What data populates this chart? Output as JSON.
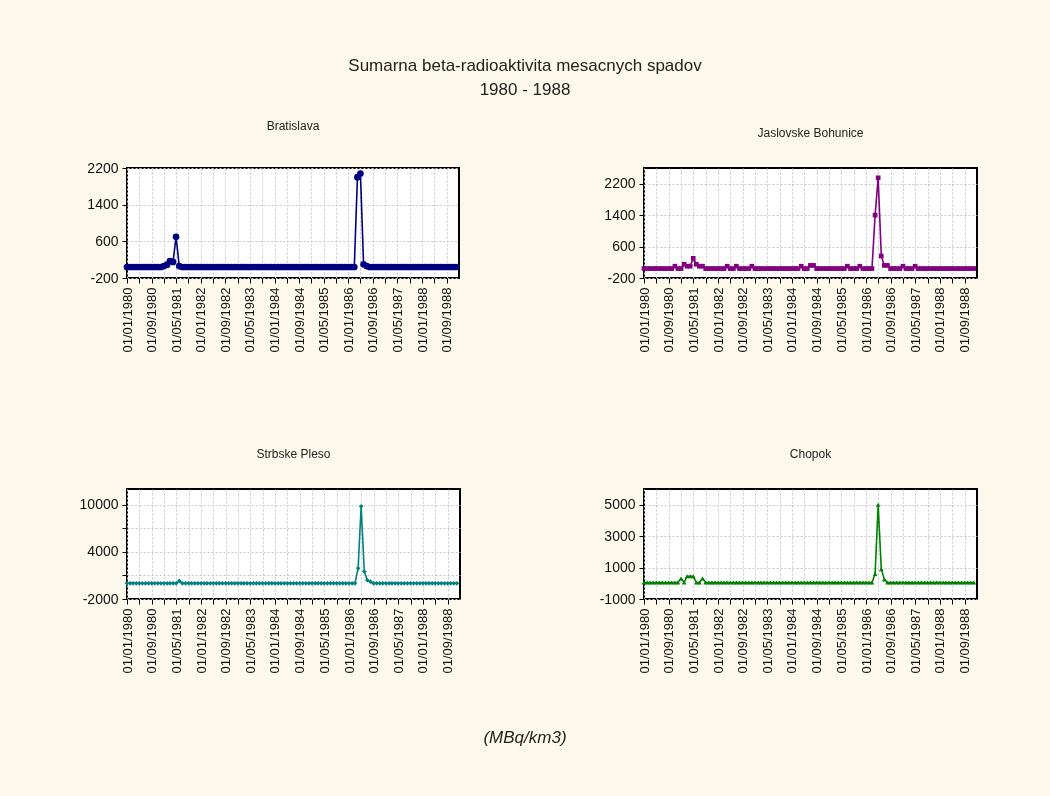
{
  "chart_data": [
    {
      "type": "other",
      "title": "Sumarna beta-radioaktivita mesacnych spadov",
      "subtitle": "1980 - 1988",
      "annotations": [
        "(MBq/km3)"
      ]
    },
    {
      "type": "line",
      "title": "Bratislava",
      "color": "#000080",
      "marker": "circle",
      "grid": true,
      "x": [
        "1980-01",
        "1980-02",
        "1980-03",
        "1980-04",
        "1980-05",
        "1980-06",
        "1980-07",
        "1980-08",
        "1980-09",
        "1980-10",
        "1980-11",
        "1980-12",
        "1981-01",
        "1981-02",
        "1981-03",
        "1981-04",
        "1981-05",
        "1981-06",
        "1981-07",
        "1981-08",
        "1981-09",
        "1981-10",
        "1981-11",
        "1981-12",
        "1982-01",
        "1982-02",
        "1982-03",
        "1982-04",
        "1982-05",
        "1982-06",
        "1982-07",
        "1982-08",
        "1982-09",
        "1982-10",
        "1982-11",
        "1982-12",
        "1983-01",
        "1983-02",
        "1983-03",
        "1983-04",
        "1983-05",
        "1983-06",
        "1983-07",
        "1983-08",
        "1983-09",
        "1983-10",
        "1983-11",
        "1983-12",
        "1984-01",
        "1984-02",
        "1984-03",
        "1984-04",
        "1984-05",
        "1984-06",
        "1984-07",
        "1984-08",
        "1984-09",
        "1984-10",
        "1984-11",
        "1984-12",
        "1985-01",
        "1985-02",
        "1985-03",
        "1985-04",
        "1985-05",
        "1985-06",
        "1985-07",
        "1985-08",
        "1985-09",
        "1985-10",
        "1985-11",
        "1985-12",
        "1986-01",
        "1986-02",
        "1986-03",
        "1986-04",
        "1986-05",
        "1986-06",
        "1986-07",
        "1986-08",
        "1986-09",
        "1986-10",
        "1986-11",
        "1986-12",
        "1987-01",
        "1987-02",
        "1987-03",
        "1987-04",
        "1987-05",
        "1987-06",
        "1987-07",
        "1987-08",
        "1987-09",
        "1987-10",
        "1987-11",
        "1987-12",
        "1988-01",
        "1988-02",
        "1988-03",
        "1988-04",
        "1988-05",
        "1988-06",
        "1988-07",
        "1988-08",
        "1988-09",
        "1988-10",
        "1988-11",
        "1988-12"
      ],
      "values": [
        40,
        40,
        40,
        40,
        40,
        40,
        40,
        40,
        40,
        40,
        40,
        40,
        60,
        90,
        170,
        150,
        700,
        60,
        40,
        40,
        40,
        40,
        40,
        40,
        40,
        40,
        40,
        40,
        40,
        40,
        40,
        40,
        40,
        40,
        40,
        40,
        40,
        40,
        40,
        40,
        40,
        40,
        40,
        40,
        40,
        40,
        40,
        40,
        40,
        40,
        40,
        40,
        40,
        40,
        40,
        40,
        40,
        40,
        40,
        40,
        40,
        40,
        40,
        40,
        40,
        40,
        40,
        40,
        40,
        40,
        40,
        40,
        40,
        40,
        40,
        2000,
        2080,
        100,
        60,
        40,
        40,
        40,
        40,
        40,
        40,
        40,
        40,
        40,
        40,
        40,
        40,
        40,
        40,
        40,
        40,
        40,
        40,
        40,
        40,
        40,
        40,
        40,
        40,
        40,
        40,
        40,
        40,
        40
      ],
      "xlim": [
        "1980-01",
        "1989-01"
      ],
      "xticks": [
        {
          "value": "1980-01",
          "label": "01/01/1980"
        },
        {
          "value": "1980-05",
          "label": null
        },
        {
          "value": "1980-09",
          "label": "01/09/1980"
        },
        {
          "value": "1981-01",
          "label": null
        },
        {
          "value": "1981-05",
          "label": "01/05/1981"
        },
        {
          "value": "1981-09",
          "label": null
        },
        {
          "value": "1982-01",
          "label": "01/01/1982"
        },
        {
          "value": "1982-05",
          "label": null
        },
        {
          "value": "1982-09",
          "label": "01/09/1982"
        },
        {
          "value": "1983-01",
          "label": null
        },
        {
          "value": "1983-05",
          "label": "01/05/1983"
        },
        {
          "value": "1983-09",
          "label": null
        },
        {
          "value": "1984-01",
          "label": "01/01/1984"
        },
        {
          "value": "1984-05",
          "label": null
        },
        {
          "value": "1984-09",
          "label": "01/09/1984"
        },
        {
          "value": "1985-01",
          "label": null
        },
        {
          "value": "1985-05",
          "label": "01/05/1985"
        },
        {
          "value": "1985-09",
          "label": null
        },
        {
          "value": "1986-01",
          "label": "01/01/1986"
        },
        {
          "value": "1986-05",
          "label": null
        },
        {
          "value": "1986-09",
          "label": "01/09/1986"
        },
        {
          "value": "1987-01",
          "label": null
        },
        {
          "value": "1987-05",
          "label": "01/05/1987"
        },
        {
          "value": "1987-09",
          "label": null
        },
        {
          "value": "1988-01",
          "label": "01/01/1988"
        },
        {
          "value": "1988-05",
          "label": null
        },
        {
          "value": "1988-09",
          "label": "01/09/1988"
        }
      ],
      "ylim": [
        -200,
        2200
      ],
      "yticks": [
        -200,
        600,
        1400,
        2200
      ]
    },
    {
      "type": "line",
      "title": "Jaslovske Bohunice",
      "color": "#800080",
      "marker": "square",
      "grid": true,
      "x": [
        "1980-01",
        "1980-02",
        "1980-03",
        "1980-04",
        "1980-05",
        "1980-06",
        "1980-07",
        "1980-08",
        "1980-09",
        "1980-10",
        "1980-11",
        "1980-12",
        "1981-01",
        "1981-02",
        "1981-03",
        "1981-04",
        "1981-05",
        "1981-06",
        "1981-07",
        "1981-08",
        "1981-09",
        "1981-10",
        "1981-11",
        "1981-12",
        "1982-01",
        "1982-02",
        "1982-03",
        "1982-04",
        "1982-05",
        "1982-06",
        "1982-07",
        "1982-08",
        "1982-09",
        "1982-10",
        "1982-11",
        "1982-12",
        "1983-01",
        "1983-02",
        "1983-03",
        "1983-04",
        "1983-05",
        "1983-06",
        "1983-07",
        "1983-08",
        "1983-09",
        "1983-10",
        "1983-11",
        "1983-12",
        "1984-01",
        "1984-02",
        "1984-03",
        "1984-04",
        "1984-05",
        "1984-06",
        "1984-07",
        "1984-08",
        "1984-09",
        "1984-10",
        "1984-11",
        "1984-12",
        "1985-01",
        "1985-02",
        "1985-03",
        "1985-04",
        "1985-05",
        "1985-06",
        "1985-07",
        "1985-08",
        "1985-09",
        "1985-10",
        "1985-11",
        "1985-12",
        "1986-01",
        "1986-02",
        "1986-03",
        "1986-04",
        "1986-05",
        "1986-06",
        "1986-07",
        "1986-08",
        "1986-09",
        "1986-10",
        "1986-11",
        "1986-12",
        "1987-01",
        "1987-02",
        "1987-03",
        "1987-04",
        "1987-05",
        "1987-06",
        "1987-07",
        "1987-08",
        "1987-09",
        "1987-10",
        "1987-11",
        "1987-12",
        "1988-01",
        "1988-02",
        "1988-03",
        "1988-04",
        "1988-05",
        "1988-06",
        "1988-07",
        "1988-08",
        "1988-09",
        "1988-10",
        "1988-11",
        "1988-12"
      ],
      "values": [
        40,
        40,
        40,
        40,
        40,
        40,
        40,
        40,
        40,
        40,
        100,
        40,
        40,
        150,
        100,
        100,
        300,
        150,
        100,
        100,
        40,
        40,
        40,
        40,
        40,
        40,
        40,
        100,
        40,
        40,
        100,
        40,
        40,
        40,
        40,
        100,
        40,
        40,
        40,
        40,
        40,
        40,
        40,
        40,
        40,
        40,
        40,
        40,
        40,
        40,
        40,
        100,
        40,
        40,
        120,
        120,
        40,
        40,
        40,
        40,
        40,
        40,
        40,
        40,
        40,
        40,
        100,
        40,
        40,
        40,
        100,
        40,
        40,
        40,
        40,
        1400,
        2350,
        360,
        120,
        120,
        40,
        40,
        40,
        40,
        100,
        40,
        40,
        40,
        100,
        40,
        40,
        40,
        40,
        40,
        40,
        40,
        40,
        40,
        40,
        40,
        40,
        40,
        40,
        40,
        40,
        40,
        40,
        40
      ],
      "xlim": [
        "1980-01",
        "1989-01"
      ],
      "xticks": [
        {
          "value": "1980-01",
          "label": "01/01/1980"
        },
        {
          "value": "1980-05",
          "label": null
        },
        {
          "value": "1980-09",
          "label": "01/09/1980"
        },
        {
          "value": "1981-01",
          "label": null
        },
        {
          "value": "1981-05",
          "label": "01/05/1981"
        },
        {
          "value": "1981-09",
          "label": null
        },
        {
          "value": "1982-01",
          "label": "01/01/1982"
        },
        {
          "value": "1982-05",
          "label": null
        },
        {
          "value": "1982-09",
          "label": "01/09/1982"
        },
        {
          "value": "1983-01",
          "label": null
        },
        {
          "value": "1983-05",
          "label": "01/05/1983"
        },
        {
          "value": "1983-09",
          "label": null
        },
        {
          "value": "1984-01",
          "label": "01/01/1984"
        },
        {
          "value": "1984-05",
          "label": null
        },
        {
          "value": "1984-09",
          "label": "01/09/1984"
        },
        {
          "value": "1985-01",
          "label": null
        },
        {
          "value": "1985-05",
          "label": "01/05/1985"
        },
        {
          "value": "1985-09",
          "label": null
        },
        {
          "value": "1986-01",
          "label": "01/01/1986"
        },
        {
          "value": "1986-05",
          "label": null
        },
        {
          "value": "1986-09",
          "label": "01/09/1986"
        },
        {
          "value": "1987-01",
          "label": null
        },
        {
          "value": "1987-05",
          "label": "01/05/1987"
        },
        {
          "value": "1987-09",
          "label": null
        },
        {
          "value": "1988-01",
          "label": "01/01/1988"
        },
        {
          "value": "1988-05",
          "label": null
        },
        {
          "value": "1988-09",
          "label": "01/09/1988"
        }
      ],
      "ylim": [
        -200,
        2600
      ],
      "yticks": [
        -200,
        600,
        1400,
        2200
      ]
    },
    {
      "type": "line",
      "title": "Strbske Pleso",
      "color": "#008080",
      "marker": "diamond",
      "grid": true,
      "x": [
        "1980-01",
        "1980-02",
        "1980-03",
        "1980-04",
        "1980-05",
        "1980-06",
        "1980-07",
        "1980-08",
        "1980-09",
        "1980-10",
        "1980-11",
        "1980-12",
        "1981-01",
        "1981-02",
        "1981-03",
        "1981-04",
        "1981-05",
        "1981-06",
        "1981-07",
        "1981-08",
        "1981-09",
        "1981-10",
        "1981-11",
        "1981-12",
        "1982-01",
        "1982-02",
        "1982-03",
        "1982-04",
        "1982-05",
        "1982-06",
        "1982-07",
        "1982-08",
        "1982-09",
        "1982-10",
        "1982-11",
        "1982-12",
        "1983-01",
        "1983-02",
        "1983-03",
        "1983-04",
        "1983-05",
        "1983-06",
        "1983-07",
        "1983-08",
        "1983-09",
        "1983-10",
        "1983-11",
        "1983-12",
        "1984-01",
        "1984-02",
        "1984-03",
        "1984-04",
        "1984-05",
        "1984-06",
        "1984-07",
        "1984-08",
        "1984-09",
        "1984-10",
        "1984-11",
        "1984-12",
        "1985-01",
        "1985-02",
        "1985-03",
        "1985-04",
        "1985-05",
        "1985-06",
        "1985-07",
        "1985-08",
        "1985-09",
        "1985-10",
        "1985-11",
        "1985-12",
        "1986-01",
        "1986-02",
        "1986-03",
        "1986-04",
        "1986-05",
        "1986-06",
        "1986-07",
        "1986-08",
        "1986-09",
        "1986-10",
        "1986-11",
        "1986-12",
        "1987-01",
        "1987-02",
        "1987-03",
        "1987-04",
        "1987-05",
        "1987-06",
        "1987-07",
        "1987-08",
        "1987-09",
        "1987-10",
        "1987-11",
        "1987-12",
        "1988-01",
        "1988-02",
        "1988-03",
        "1988-04",
        "1988-05",
        "1988-06",
        "1988-07",
        "1988-08",
        "1988-09",
        "1988-10",
        "1988-11",
        "1988-12"
      ],
      "values": [
        0,
        0,
        0,
        0,
        0,
        0,
        0,
        0,
        0,
        0,
        0,
        0,
        0,
        0,
        0,
        0,
        0,
        300,
        0,
        0,
        0,
        0,
        0,
        0,
        0,
        0,
        0,
        0,
        0,
        0,
        0,
        0,
        0,
        0,
        0,
        0,
        0,
        0,
        0,
        0,
        0,
        0,
        0,
        0,
        0,
        0,
        0,
        0,
        0,
        0,
        0,
        0,
        0,
        0,
        0,
        0,
        0,
        0,
        0,
        0,
        0,
        0,
        0,
        0,
        0,
        0,
        0,
        0,
        0,
        0,
        0,
        0,
        0,
        0,
        0,
        1900,
        9800,
        1500,
        400,
        200,
        0,
        0,
        0,
        0,
        0,
        0,
        0,
        0,
        0,
        0,
        0,
        0,
        0,
        0,
        0,
        0,
        0,
        0,
        0,
        0,
        0,
        0,
        0,
        0,
        0,
        0,
        0,
        0
      ],
      "xlim": [
        "1980-01",
        "1989-01"
      ],
      "xticks": [
        {
          "value": "1980-01",
          "label": "01/01/1980"
        },
        {
          "value": "1980-05",
          "label": null
        },
        {
          "value": "1980-09",
          "label": "01/09/1980"
        },
        {
          "value": "1981-01",
          "label": null
        },
        {
          "value": "1981-05",
          "label": "01/05/1981"
        },
        {
          "value": "1981-09",
          "label": null
        },
        {
          "value": "1982-01",
          "label": "01/01/1982"
        },
        {
          "value": "1982-05",
          "label": null
        },
        {
          "value": "1982-09",
          "label": "01/09/1982"
        },
        {
          "value": "1983-01",
          "label": null
        },
        {
          "value": "1983-05",
          "label": "01/05/1983"
        },
        {
          "value": "1983-09",
          "label": null
        },
        {
          "value": "1984-01",
          "label": "01/01/1984"
        },
        {
          "value": "1984-05",
          "label": null
        },
        {
          "value": "1984-09",
          "label": "01/09/1984"
        },
        {
          "value": "1985-01",
          "label": null
        },
        {
          "value": "1985-05",
          "label": "01/05/1985"
        },
        {
          "value": "1985-09",
          "label": null
        },
        {
          "value": "1986-01",
          "label": "01/01/1986"
        },
        {
          "value": "1986-05",
          "label": null
        },
        {
          "value": "1986-09",
          "label": "01/09/1986"
        },
        {
          "value": "1987-01",
          "label": null
        },
        {
          "value": "1987-05",
          "label": "01/05/1987"
        },
        {
          "value": "1987-09",
          "label": null
        },
        {
          "value": "1988-01",
          "label": "01/01/1988"
        },
        {
          "value": "1988-05",
          "label": null
        },
        {
          "value": "1988-09",
          "label": "01/09/1988"
        }
      ],
      "ylim": [
        -2000,
        12000
      ],
      "yticks": [
        -2000,
        {
          "value": 1000,
          "label": null
        },
        4000,
        {
          "value": 7000,
          "label": null
        },
        10000
      ]
    },
    {
      "type": "line",
      "title": "Chopok",
      "color": "#008000",
      "marker": "triangle",
      "grid": true,
      "x": [
        "1980-01",
        "1980-02",
        "1980-03",
        "1980-04",
        "1980-05",
        "1980-06",
        "1980-07",
        "1980-08",
        "1980-09",
        "1980-10",
        "1980-11",
        "1980-12",
        "1981-01",
        "1981-02",
        "1981-03",
        "1981-04",
        "1981-05",
        "1981-06",
        "1981-07",
        "1981-08",
        "1981-09",
        "1981-10",
        "1981-11",
        "1981-12",
        "1982-01",
        "1982-02",
        "1982-03",
        "1982-04",
        "1982-05",
        "1982-06",
        "1982-07",
        "1982-08",
        "1982-09",
        "1982-10",
        "1982-11",
        "1982-12",
        "1983-01",
        "1983-02",
        "1983-03",
        "1983-04",
        "1983-05",
        "1983-06",
        "1983-07",
        "1983-08",
        "1983-09",
        "1983-10",
        "1983-11",
        "1983-12",
        "1984-01",
        "1984-02",
        "1984-03",
        "1984-04",
        "1984-05",
        "1984-06",
        "1984-07",
        "1984-08",
        "1984-09",
        "1984-10",
        "1984-11",
        "1984-12",
        "1985-01",
        "1985-02",
        "1985-03",
        "1985-04",
        "1985-05",
        "1985-06",
        "1985-07",
        "1985-08",
        "1985-09",
        "1985-10",
        "1985-11",
        "1985-12",
        "1986-01",
        "1986-02",
        "1986-03",
        "1986-04",
        "1986-05",
        "1986-06",
        "1986-07",
        "1986-08",
        "1986-09",
        "1986-10",
        "1986-11",
        "1986-12",
        "1987-01",
        "1987-02",
        "1987-03",
        "1987-04",
        "1987-05",
        "1987-06",
        "1987-07",
        "1987-08",
        "1987-09",
        "1987-10",
        "1987-11",
        "1987-12",
        "1988-01",
        "1988-02",
        "1988-03",
        "1988-04",
        "1988-05",
        "1988-06",
        "1988-07",
        "1988-08",
        "1988-09",
        "1988-10",
        "1988-11",
        "1988-12"
      ],
      "values": [
        50,
        50,
        50,
        50,
        50,
        50,
        50,
        50,
        50,
        50,
        50,
        50,
        300,
        50,
        450,
        450,
        450,
        50,
        50,
        300,
        50,
        50,
        50,
        50,
        50,
        50,
        50,
        50,
        50,
        50,
        50,
        50,
        50,
        50,
        50,
        50,
        50,
        50,
        50,
        50,
        50,
        50,
        50,
        50,
        50,
        50,
        50,
        50,
        50,
        50,
        50,
        50,
        50,
        50,
        50,
        50,
        50,
        50,
        50,
        50,
        50,
        50,
        50,
        50,
        50,
        50,
        50,
        50,
        50,
        50,
        50,
        50,
        50,
        50,
        50,
        600,
        5000,
        900,
        250,
        50,
        50,
        50,
        50,
        50,
        50,
        50,
        50,
        50,
        50,
        50,
        50,
        50,
        50,
        50,
        50,
        50,
        50,
        50,
        50,
        50,
        50,
        50,
        50,
        50,
        50,
        50,
        50,
        50
      ],
      "xlim": [
        "1980-01",
        "1989-01"
      ],
      "xticks": [
        {
          "value": "1980-01",
          "label": "01/01/1980"
        },
        {
          "value": "1980-05",
          "label": null
        },
        {
          "value": "1980-09",
          "label": "01/09/1980"
        },
        {
          "value": "1981-01",
          "label": null
        },
        {
          "value": "1981-05",
          "label": "01/05/1981"
        },
        {
          "value": "1981-09",
          "label": null
        },
        {
          "value": "1982-01",
          "label": "01/01/1982"
        },
        {
          "value": "1982-05",
          "label": null
        },
        {
          "value": "1982-09",
          "label": "01/09/1982"
        },
        {
          "value": "1983-01",
          "label": null
        },
        {
          "value": "1983-05",
          "label": "01/05/1983"
        },
        {
          "value": "1983-09",
          "label": null
        },
        {
          "value": "1984-01",
          "label": "01/01/1984"
        },
        {
          "value": "1984-05",
          "label": null
        },
        {
          "value": "1984-09",
          "label": "01/09/1984"
        },
        {
          "value": "1985-01",
          "label": null
        },
        {
          "value": "1985-05",
          "label": "01/05/1985"
        },
        {
          "value": "1985-09",
          "label": null
        },
        {
          "value": "1986-01",
          "label": "01/01/1986"
        },
        {
          "value": "1986-05",
          "label": null
        },
        {
          "value": "1986-09",
          "label": "01/09/1986"
        },
        {
          "value": "1987-01",
          "label": null
        },
        {
          "value": "1987-05",
          "label": "01/05/1987"
        },
        {
          "value": "1987-09",
          "label": null
        },
        {
          "value": "1988-01",
          "label": "01/01/1988"
        },
        {
          "value": "1988-05",
          "label": null
        },
        {
          "value": "1988-09",
          "label": "01/09/1988"
        }
      ],
      "ylim": [
        -1000,
        6000
      ],
      "yticks": [
        -1000,
        1000,
        3000,
        5000
      ]
    }
  ]
}
